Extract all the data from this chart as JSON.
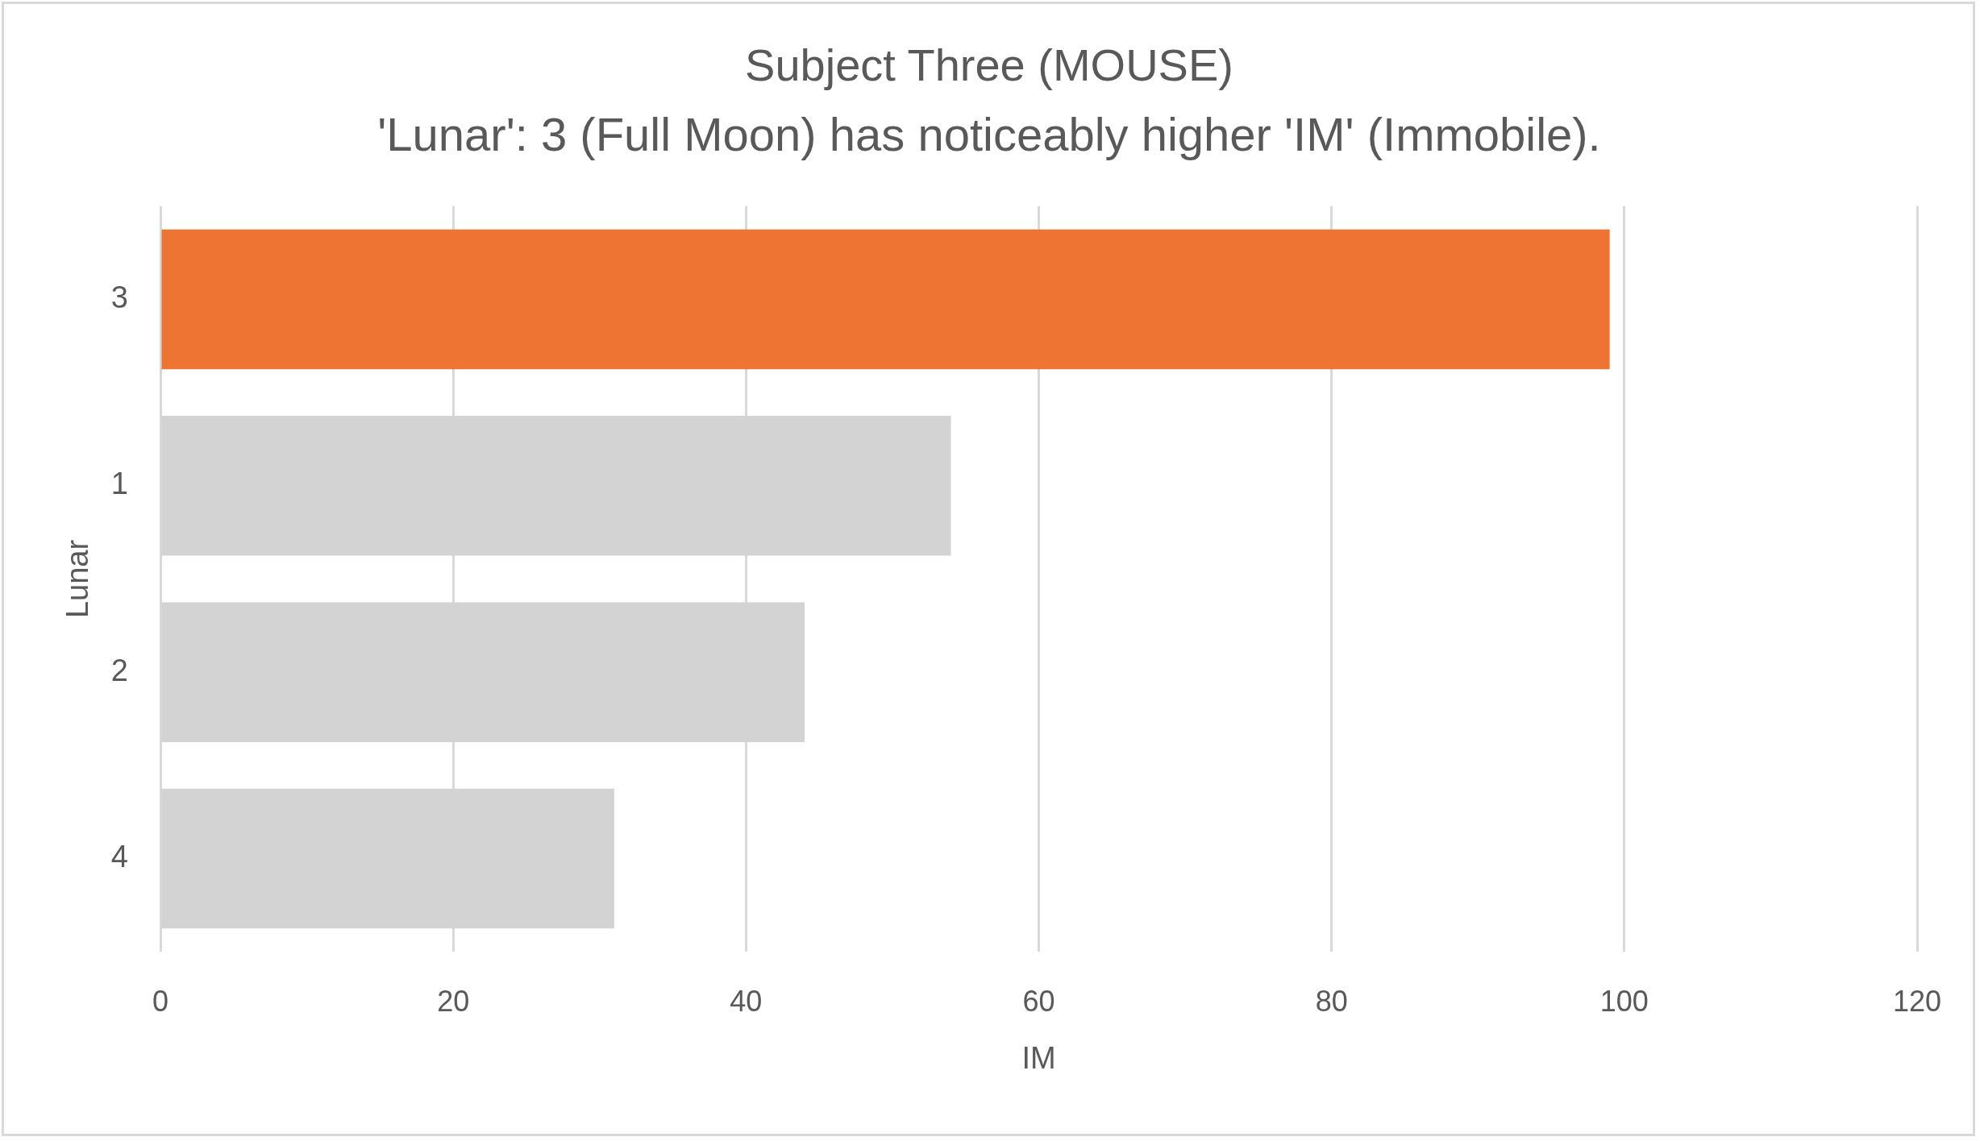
{
  "chart_data": {
    "type": "bar",
    "orientation": "horizontal",
    "title": "Subject Three (MOUSE)",
    "subtitle": "'Lunar': 3 (Full Moon) has noticeably higher 'IM' (Immobile).",
    "xlabel": "IM",
    "ylabel": "Lunar",
    "categories": [
      "3",
      "1",
      "2",
      "4"
    ],
    "values": [
      99,
      54,
      44,
      31
    ],
    "colors": [
      "#ed7432",
      "#d3d3d3",
      "#d3d3d3",
      "#d3d3d3"
    ],
    "xlim": [
      0,
      120
    ],
    "xticks": [
      0,
      20,
      40,
      60,
      80,
      100,
      120
    ],
    "grid": "x"
  }
}
